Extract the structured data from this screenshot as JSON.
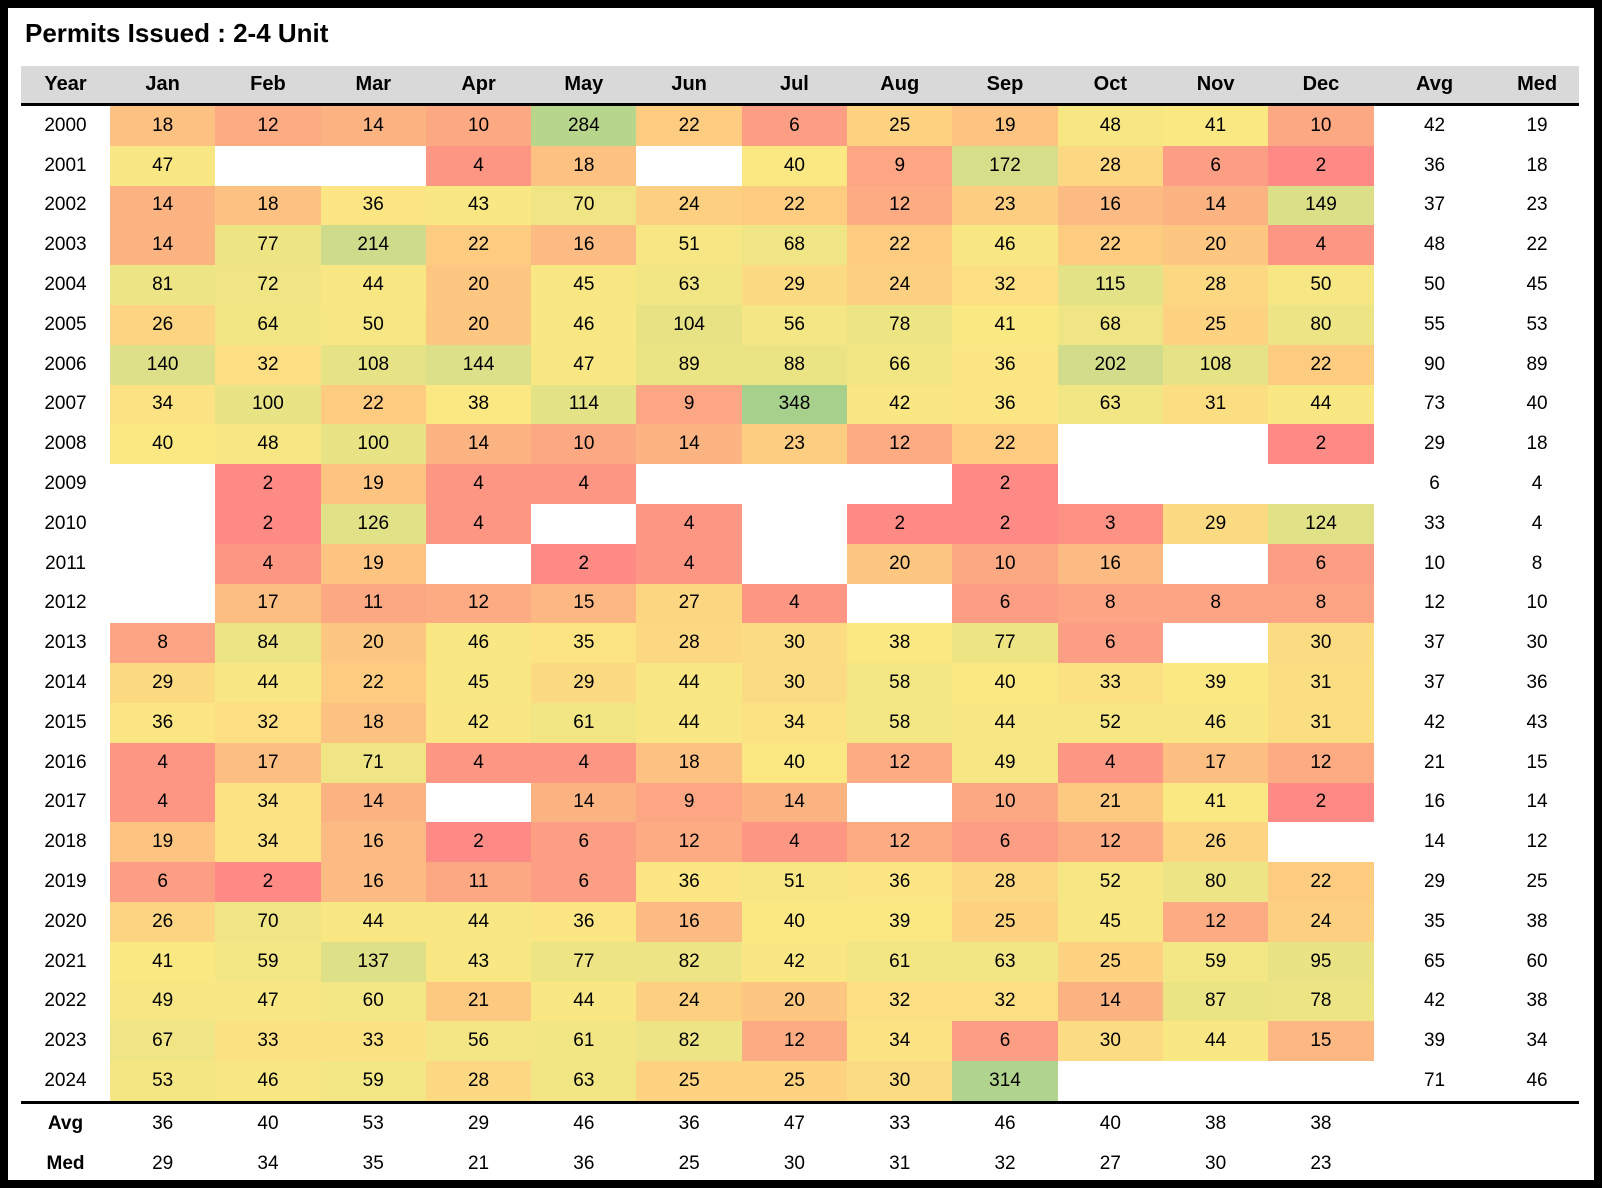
{
  "title": "Permits Issued : 2-4 Unit",
  "chart_data": {
    "type": "heatmap",
    "title": "Permits Issued : 2-4 Unit",
    "columns": [
      "Year",
      "Jan",
      "Feb",
      "Mar",
      "Apr",
      "May",
      "Jun",
      "Jul",
      "Aug",
      "Sep",
      "Oct",
      "Nov",
      "Dec",
      "Avg",
      "Med"
    ],
    "rows": [
      {
        "year": "2000",
        "values": [
          18,
          12,
          14,
          10,
          284,
          22,
          6,
          25,
          19,
          48,
          41,
          10
        ],
        "avg": 42,
        "med": 19
      },
      {
        "year": "2001",
        "values": [
          47,
          null,
          null,
          4,
          18,
          null,
          40,
          9,
          172,
          28,
          6,
          2
        ],
        "avg": 36,
        "med": 18
      },
      {
        "year": "2002",
        "values": [
          14,
          18,
          36,
          43,
          70,
          24,
          22,
          12,
          23,
          16,
          14,
          149
        ],
        "avg": 37,
        "med": 23
      },
      {
        "year": "2003",
        "values": [
          14,
          77,
          214,
          22,
          16,
          51,
          68,
          22,
          46,
          22,
          20,
          4
        ],
        "avg": 48,
        "med": 22
      },
      {
        "year": "2004",
        "values": [
          81,
          72,
          44,
          20,
          45,
          63,
          29,
          24,
          32,
          115,
          28,
          50
        ],
        "avg": 50,
        "med": 45
      },
      {
        "year": "2005",
        "values": [
          26,
          64,
          50,
          20,
          46,
          104,
          56,
          78,
          41,
          68,
          25,
          80
        ],
        "avg": 55,
        "med": 53
      },
      {
        "year": "2006",
        "values": [
          140,
          32,
          108,
          144,
          47,
          89,
          88,
          66,
          36,
          202,
          108,
          22
        ],
        "avg": 90,
        "med": 89
      },
      {
        "year": "2007",
        "values": [
          34,
          100,
          22,
          38,
          114,
          9,
          348,
          42,
          36,
          63,
          31,
          44
        ],
        "avg": 73,
        "med": 40
      },
      {
        "year": "2008",
        "values": [
          40,
          48,
          100,
          14,
          10,
          14,
          23,
          12,
          22,
          null,
          null,
          2
        ],
        "avg": 29,
        "med": 18
      },
      {
        "year": "2009",
        "values": [
          null,
          2,
          19,
          4,
          4,
          null,
          null,
          null,
          2,
          null,
          null,
          null
        ],
        "avg": 6,
        "med": 4
      },
      {
        "year": "2010",
        "values": [
          null,
          2,
          126,
          4,
          null,
          4,
          null,
          2,
          2,
          3,
          29,
          124
        ],
        "avg": 33,
        "med": 4
      },
      {
        "year": "2011",
        "values": [
          null,
          4,
          19,
          null,
          2,
          4,
          null,
          20,
          10,
          16,
          null,
          6
        ],
        "avg": 10,
        "med": 8
      },
      {
        "year": "2012",
        "values": [
          null,
          17,
          11,
          12,
          15,
          27,
          4,
          null,
          6,
          8,
          8,
          8
        ],
        "avg": 12,
        "med": 10
      },
      {
        "year": "2013",
        "values": [
          8,
          84,
          20,
          46,
          35,
          28,
          30,
          38,
          77,
          6,
          null,
          30
        ],
        "avg": 37,
        "med": 30
      },
      {
        "year": "2014",
        "values": [
          29,
          44,
          22,
          45,
          29,
          44,
          30,
          58,
          40,
          33,
          39,
          31
        ],
        "avg": 37,
        "med": 36
      },
      {
        "year": "2015",
        "values": [
          36,
          32,
          18,
          42,
          61,
          44,
          34,
          58,
          44,
          52,
          46,
          31
        ],
        "avg": 42,
        "med": 43
      },
      {
        "year": "2016",
        "values": [
          4,
          17,
          71,
          4,
          4,
          18,
          40,
          12,
          49,
          4,
          17,
          12
        ],
        "avg": 21,
        "med": 15
      },
      {
        "year": "2017",
        "values": [
          4,
          34,
          14,
          null,
          14,
          9,
          14,
          null,
          10,
          21,
          41,
          2
        ],
        "avg": 16,
        "med": 14
      },
      {
        "year": "2018",
        "values": [
          19,
          34,
          16,
          2,
          6,
          12,
          4,
          12,
          6,
          12,
          26,
          null
        ],
        "avg": 14,
        "med": 12
      },
      {
        "year": "2019",
        "values": [
          6,
          2,
          16,
          11,
          6,
          36,
          51,
          36,
          28,
          52,
          80,
          22
        ],
        "avg": 29,
        "med": 25
      },
      {
        "year": "2020",
        "values": [
          26,
          70,
          44,
          44,
          36,
          16,
          40,
          39,
          25,
          45,
          12,
          24
        ],
        "avg": 35,
        "med": 38
      },
      {
        "year": "2021",
        "values": [
          41,
          59,
          137,
          43,
          77,
          82,
          42,
          61,
          63,
          25,
          59,
          95
        ],
        "avg": 65,
        "med": 60
      },
      {
        "year": "2022",
        "values": [
          49,
          47,
          60,
          21,
          44,
          24,
          20,
          32,
          32,
          14,
          87,
          78
        ],
        "avg": 42,
        "med": 38
      },
      {
        "year": "2023",
        "values": [
          67,
          33,
          33,
          56,
          61,
          82,
          12,
          34,
          6,
          30,
          44,
          15
        ],
        "avg": 39,
        "med": 34
      },
      {
        "year": "2024",
        "values": [
          53,
          46,
          59,
          28,
          63,
          25,
          25,
          30,
          314,
          null,
          null,
          null
        ],
        "avg": 71,
        "med": 46
      }
    ],
    "footer": [
      {
        "label": "Avg",
        "values": [
          36,
          40,
          53,
          29,
          46,
          36,
          47,
          33,
          46,
          40,
          38,
          38
        ]
      },
      {
        "label": "Med",
        "values": [
          29,
          34,
          35,
          21,
          36,
          25,
          30,
          31,
          32,
          27,
          30,
          23
        ]
      }
    ],
    "color_scale": {
      "low": "#fd8a84",
      "mid_low": "#fdc681",
      "mid": "#fce883",
      "high": "#a8d08d"
    }
  }
}
